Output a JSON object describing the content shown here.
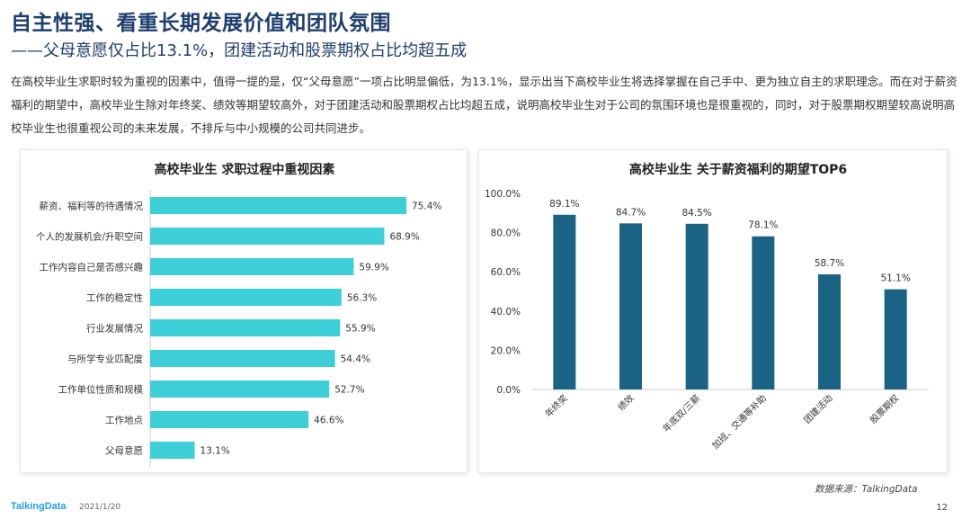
{
  "header": {
    "title": "自主性强、看重长期发展价值和团队氛围",
    "subtitle": "——父母意愿仅占比13.1%，团建活动和股票期权占比均超五成",
    "body": "在高校毕业生求职时较为重视的因素中，值得一提的是，仅“父母意愿”一项占比明显偏低，为13.1%，显示出当下高校毕业生将选择掌握在自己手中、更为独立自主的求职理念。而在对于薪资福利的期望中，高校毕业生除对年终奖、绩效等期望较高外，对于团建活动和股票期权占比均超五成，说明高校毕业生对于公司的氛围环境也是很重视的，同时，对于股票期权期望较高说明高校毕业生也很重视公司的未来发展，不排斥与中小规模的公司共同进步。"
  },
  "chart_data": [
    {
      "type": "bar",
      "orientation": "horizontal",
      "title": "高校毕业生  求职过程中重视因素",
      "categories": [
        "薪资、福利等的待遇情况",
        "个人的发展机会/升职空间",
        "工作内容自己是否感兴趣",
        "工作的稳定性",
        "行业发展情况",
        "与所学专业匹配度",
        "工作单位性质和规模",
        "工作地点",
        "父母意愿"
      ],
      "values": [
        75.4,
        68.9,
        59.9,
        56.3,
        55.9,
        54.4,
        52.7,
        46.6,
        13.1
      ],
      "labels": [
        "75.4%",
        "68.9%",
        "59.9%",
        "56.3%",
        "55.9%",
        "54.4%",
        "52.7%",
        "46.6%",
        "13.1%"
      ],
      "xlim": [
        0,
        100
      ],
      "color": "#3dcfd8",
      "grid": false
    },
    {
      "type": "bar",
      "orientation": "vertical",
      "title": "高校毕业生  关于薪资福利的期望TOP6",
      "categories": [
        "年终奖",
        "绩效",
        "年底双/三薪",
        "加班、交通等补助",
        "团建活动",
        "股票期权"
      ],
      "values": [
        89.1,
        84.7,
        84.5,
        78.1,
        58.7,
        51.1
      ],
      "labels": [
        "89.1%",
        "84.7%",
        "84.5%",
        "78.1%",
        "58.7%",
        "51.1%"
      ],
      "ylim": [
        0,
        100
      ],
      "yticks": [
        "0.0%",
        "20.0%",
        "40.0%",
        "60.0%",
        "80.0%",
        "100.0%"
      ],
      "color": "#1b6385",
      "grid": false
    }
  ],
  "footer": {
    "source": "数据来源：TalkingData",
    "logo": "TalkingData",
    "date": "2021/1/20",
    "page": "12"
  }
}
